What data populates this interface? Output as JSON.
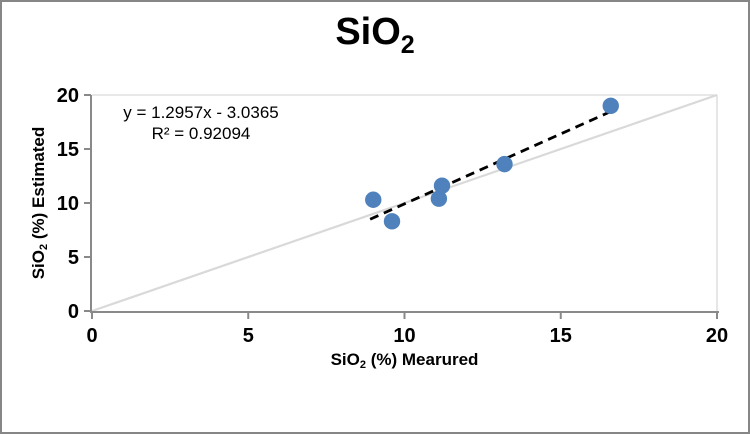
{
  "chart_data": {
    "type": "scatter",
    "title": "SiO₂",
    "title_main": "SiO",
    "title_sub": "2",
    "xlabel": "SiO₂ (%) Mearured",
    "xlabel_main": "SiO",
    "xlabel_sub": "2",
    "xlabel_rest": " (%) Mearured",
    "ylabel": "SiO₂ (%) Estimated",
    "ylabel_main": "SiO",
    "ylabel_sub": "2",
    "ylabel_rest": " (%) Estimated",
    "xlim": [
      0,
      20
    ],
    "ylim": [
      0,
      20
    ],
    "xticks": [
      0,
      5,
      10,
      15,
      20
    ],
    "yticks": [
      0,
      5,
      10,
      15,
      20
    ],
    "grid": false,
    "points": [
      {
        "x": 9.0,
        "y": 10.3
      },
      {
        "x": 9.6,
        "y": 8.3
      },
      {
        "x": 11.1,
        "y": 10.4
      },
      {
        "x": 11.2,
        "y": 11.6
      },
      {
        "x": 13.2,
        "y": 13.6
      },
      {
        "x": 16.6,
        "y": 19.0
      }
    ],
    "trendline": {
      "slope": 1.2957,
      "intercept": -3.0365,
      "x_start": 8.9,
      "x_end": 16.6,
      "style": "dashed"
    },
    "identity_line": {
      "from": [
        0,
        0
      ],
      "to": [
        20,
        20
      ]
    },
    "annotation": {
      "equation": "y = 1.2957x - 3.0365",
      "r_squared": "R² = 0.92094"
    },
    "colors": {
      "marker": "#4f81bd",
      "trendline": "#000000",
      "identity_line": "#d9d9d9",
      "plot_border": "#d9d9d9",
      "axis": "#898989",
      "text": "#000000"
    }
  }
}
